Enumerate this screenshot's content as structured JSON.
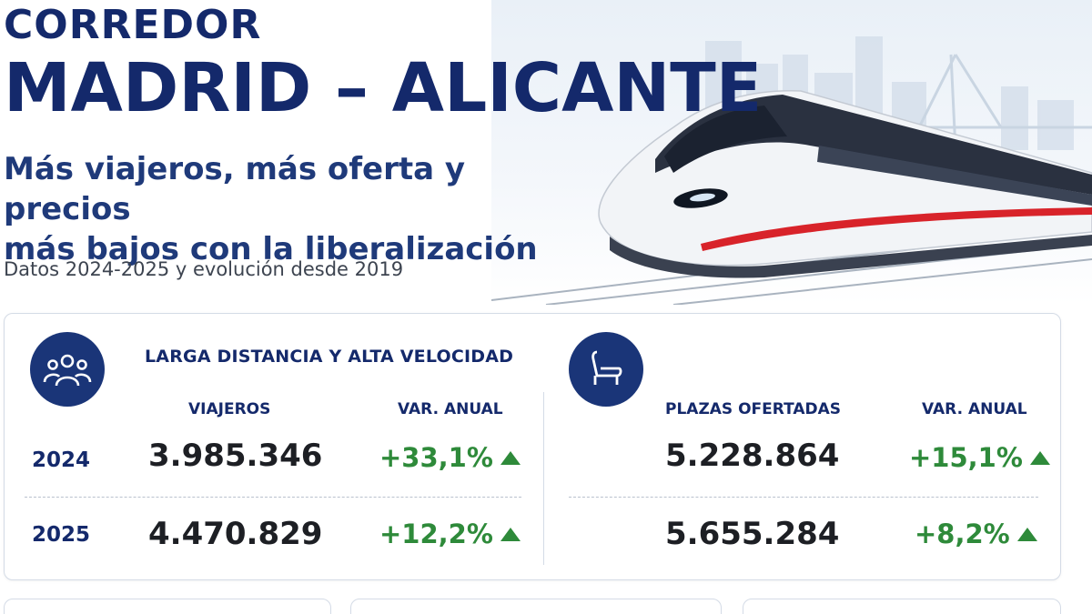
{
  "header": {
    "title_line1": "CORREDOR",
    "title_line2": "MADRID – ALICANTE",
    "subtitle_line1": "Más viajeros, más oferta y precios",
    "subtitle_line2": "más bajos con la liberalización",
    "data_note": "Datos 2024-2025 y evolución desde 2019"
  },
  "card": {
    "section_title": "LARGA DISTANCIA Y ALTA VELOCIDAD",
    "left": {
      "icon": "people-group-icon",
      "col_value": "VIAJEROS",
      "col_var": "VAR. ANUAL",
      "rows": [
        {
          "year": "2024",
          "value": "3.985.346",
          "var": "+33,1%"
        },
        {
          "year": "2025",
          "value": "4.470.829",
          "var": "+12,2%"
        }
      ]
    },
    "right": {
      "icon": "seat-icon",
      "col_value": "PLAZAS OFERTADAS",
      "col_var": "VAR. ANUAL",
      "rows": [
        {
          "value": "5.228.864",
          "var": "+15,1%"
        },
        {
          "value": "5.655.284",
          "var": "+8,2%"
        }
      ]
    }
  },
  "colors": {
    "navy": "#14296b",
    "icon_bg": "#1a3578",
    "positive": "#2e8a3a",
    "train_stripe": "#d8232a"
  }
}
